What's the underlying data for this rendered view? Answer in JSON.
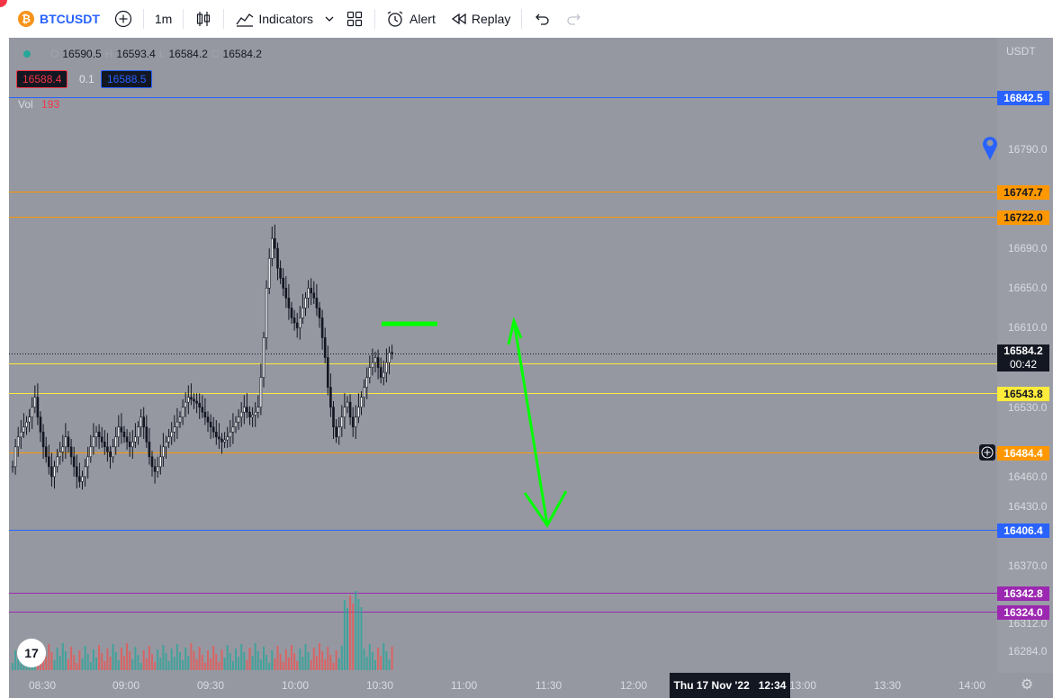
{
  "toolbar": {
    "symbol": "BTCUSDT",
    "timeframe": "1m",
    "indicators_label": "Indicators",
    "alert_label": "Alert",
    "replay_label": "Replay"
  },
  "legend": {
    "open_label": "O",
    "open": "16590.5",
    "high_label": "H",
    "high": "16593.4",
    "low_label": "L",
    "low": "16584.2",
    "close_label": "C",
    "close": "16584.2",
    "sell_price": "16588.4",
    "spread": "0.1",
    "buy_price": "16588.5",
    "vol_label": "Vol",
    "vol_value": "193"
  },
  "price_axis": {
    "currency": "USDT",
    "ticks": [
      "16790.0",
      "16690.0",
      "16650.0",
      "16610.0",
      "16530.0",
      "16460.0",
      "16430.0",
      "16370.0",
      "16312.0",
      "16284.0"
    ]
  },
  "levels": [
    {
      "price": 16842.5,
      "label": "16842.5",
      "color": "#2962ff",
      "text_color": "#ffffff"
    },
    {
      "price": 16747.7,
      "label": "16747.7",
      "color": "#ff9800",
      "text_color": "#131722"
    },
    {
      "price": 16722.0,
      "label": "16722.0",
      "color": "#ff9800",
      "text_color": "#131722"
    },
    {
      "price": 16574.1,
      "label": "16574.1",
      "color": "#ffeb3b",
      "text_color": "#131722"
    },
    {
      "price": 16543.8,
      "label": "16543.8",
      "color": "#ffeb3b",
      "text_color": "#131722"
    },
    {
      "price": 16484.4,
      "label": "16484.4",
      "color": "#ff9800",
      "text_color": "#ffffff"
    },
    {
      "price": 16406.4,
      "label": "16406.4",
      "color": "#2962ff",
      "text_color": "#ffffff"
    },
    {
      "price": 16342.8,
      "label": "16342.8",
      "color": "#9c27b0",
      "text_color": "#ffffff"
    },
    {
      "price": 16324.0,
      "label": "16324.0",
      "color": "#9c27b0",
      "text_color": "#ffffff"
    }
  ],
  "current": {
    "price": "16584.2",
    "countdown": "00:42"
  },
  "time_axis": {
    "labels": [
      "08:30",
      "09:00",
      "09:30",
      "10:00",
      "10:30",
      "11:00",
      "11:30",
      "12:00",
      "13:00",
      "13:30",
      "14:00"
    ],
    "cursor_label": "Thu 17 Nov '22   12:34"
  },
  "colors": {
    "background": "#9598a1",
    "arrow": "#00ff00",
    "up_volume": "#26a69a",
    "down_volume": "#ef5350"
  },
  "chart_data": {
    "type": "candlestick",
    "symbol": "BTCUSDT",
    "interval": "1m",
    "x_start": "08:24",
    "close_series": [
      16470,
      16490,
      16500,
      16505,
      16510,
      16515,
      16520,
      16530,
      16540,
      16520,
      16505,
      16490,
      16480,
      16470,
      16460,
      16470,
      16480,
      16485,
      16490,
      16500,
      16490,
      16480,
      16470,
      16460,
      16455,
      16460,
      16470,
      16480,
      16490,
      16500,
      16505,
      16500,
      16495,
      16490,
      16485,
      16480,
      16490,
      16500,
      16510,
      16505,
      16500,
      16495,
      16490,
      16495,
      16500,
      16510,
      16520,
      16510,
      16495,
      16480,
      16470,
      16465,
      16470,
      16480,
      16490,
      16495,
      16500,
      16505,
      16510,
      16515,
      16520,
      16530,
      16535,
      16540,
      16538,
      16536,
      16534,
      16530,
      16525,
      16520,
      16515,
      16510,
      16505,
      16500,
      16498,
      16495,
      16497,
      16500,
      16505,
      16510,
      16515,
      16520,
      16525,
      16530,
      16525,
      16520,
      16522,
      16525,
      16530,
      16560,
      16600,
      16650,
      16680,
      16700,
      16690,
      16670,
      16660,
      16650,
      16640,
      16630,
      16620,
      16615,
      16610,
      16620,
      16630,
      16640,
      16650,
      16645,
      16640,
      16630,
      16620,
      16600,
      16580,
      16550,
      16530,
      16510,
      16500,
      16510,
      16520,
      16530,
      16535,
      16520,
      16510,
      16520,
      16530,
      16540,
      16550,
      16560,
      16570,
      16575,
      16580,
      16570,
      16560,
      16565,
      16575,
      16585,
      16584.2
    ],
    "volume_note": "volume histogram, peak bars near 10:20 and 10:55"
  }
}
